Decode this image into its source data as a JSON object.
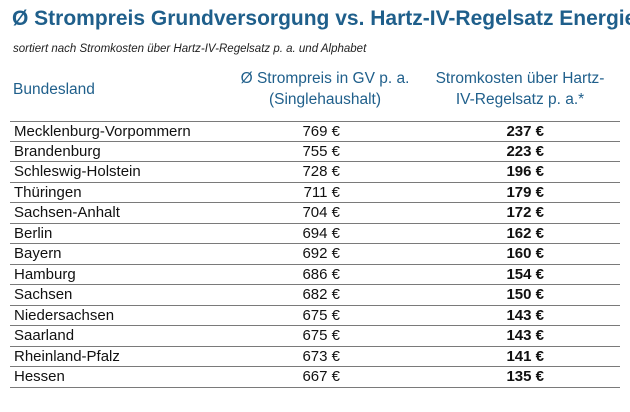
{
  "title": "Ø Strompreis Grundversorgung vs. Hartz-IV-Regelsatz Energie",
  "subtitle": "sortiert nach Stromkosten über Hartz-IV-Regelsatz p. a. und Alphabet",
  "chart_data": {
    "type": "table",
    "columns": [
      "Bundesland",
      "Ø Strompreis in GV p. a. (Singlehaushalt)",
      "Stromkosten über Hartz-IV-Regelsatz p. a.*"
    ],
    "column_lines": {
      "bundesland": [
        "Bundesland"
      ],
      "strompreis": [
        "Ø Strompreis in GV p. a.",
        "(Singlehaushalt)"
      ],
      "stromkosten": [
        "Stromkosten über Hartz-",
        "IV-Regelsatz p. a.*"
      ]
    },
    "rows": [
      {
        "land": "Mecklenburg-Vorpommern",
        "preis": "769 €",
        "kosten": "237 €"
      },
      {
        "land": "Brandenburg",
        "preis": "755 €",
        "kosten": "223 €"
      },
      {
        "land": "Schleswig-Holstein",
        "preis": "728 €",
        "kosten": "196 €"
      },
      {
        "land": "Thüringen",
        "preis": "711 €",
        "kosten": "179 €"
      },
      {
        "land": "Sachsen-Anhalt",
        "preis": "704 €",
        "kosten": "172 €"
      },
      {
        "land": "Berlin",
        "preis": "694 €",
        "kosten": "162 €"
      },
      {
        "land": "Bayern",
        "preis": "692 €",
        "kosten": "160 €"
      },
      {
        "land": "Hamburg",
        "preis": "686 €",
        "kosten": "154 €"
      },
      {
        "land": "Sachsen",
        "preis": "682 €",
        "kosten": "150 €"
      },
      {
        "land": "Niedersachsen",
        "preis": "675 €",
        "kosten": "143 €"
      },
      {
        "land": "Saarland",
        "preis": "675 €",
        "kosten": "143 €"
      },
      {
        "land": "Rheinland-Pfalz",
        "preis": "673 €",
        "kosten": "141 €"
      },
      {
        "land": "Hessen",
        "preis": "667 €",
        "kosten": "135 €"
      }
    ]
  },
  "colors": {
    "accent": "#1f5f8b",
    "text": "#111111",
    "rule": "#7a7a7a"
  }
}
